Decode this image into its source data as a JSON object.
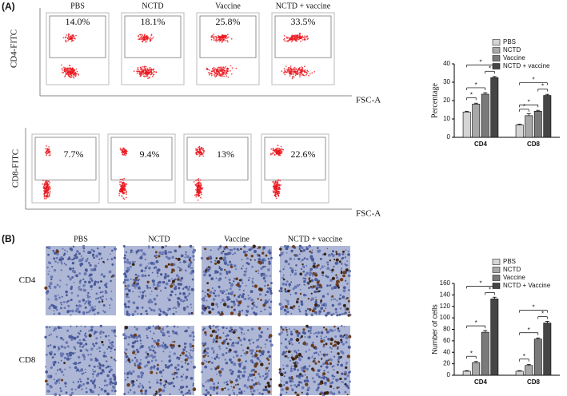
{
  "panel_a": {
    "label": "(A)",
    "groups": [
      "PBS",
      "NCTD",
      "Vaccine",
      "NCTD + vaccine"
    ],
    "rows": [
      {
        "marker": "CD4-FITC",
        "x_label": "FSC-A",
        "percentages": [
          "14.0%",
          "18.1%",
          "25.8%",
          "33.5%"
        ]
      },
      {
        "marker": "CD8-FITC",
        "x_label": "FSC-A",
        "percentages": [
          "7.7%",
          "9.4%",
          "13%",
          "22.6%"
        ]
      }
    ]
  },
  "panel_b": {
    "label": "(B)",
    "groups": [
      "PBS",
      "NCTD",
      "Vaccine",
      "NCTD + vaccine"
    ],
    "rows": [
      "CD4",
      "CD8"
    ]
  },
  "chart_data": [
    {
      "type": "bar",
      "y_label": "Percentage",
      "categories": [
        "CD4",
        "CD8"
      ],
      "series": [
        {
          "name": "PBS",
          "color": "#d4d4d4",
          "values": [
            13.8,
            6.8
          ],
          "errors": [
            0.4,
            0.4
          ]
        },
        {
          "name": "NCTD",
          "color": "#a8a8a8",
          "values": [
            18.1,
            11.8
          ],
          "errors": [
            0.5,
            1.0
          ]
        },
        {
          "name": "Vaccine",
          "color": "#7a7a7a",
          "values": [
            23.5,
            14.2
          ],
          "errors": [
            0.8,
            0.5
          ]
        },
        {
          "name": "NCTD + vaccine",
          "color": "#454545",
          "values": [
            32.5,
            22.8
          ],
          "errors": [
            0.6,
            0.6
          ]
        }
      ],
      "ylim": [
        0,
        40
      ],
      "yticks": [
        0,
        10,
        20,
        30,
        40
      ],
      "legend": "upper right",
      "annotations": [
        "*",
        "*",
        "*",
        "*",
        "*",
        "*",
        "*",
        "*"
      ]
    },
    {
      "type": "bar",
      "y_label": "Number of cells",
      "categories": [
        "CD4",
        "CD8"
      ],
      "series": [
        {
          "name": "PBS",
          "color": "#d4d4d4",
          "values": [
            7,
            7
          ],
          "errors": [
            1,
            1
          ]
        },
        {
          "name": "NCTD",
          "color": "#a8a8a8",
          "values": [
            22,
            17
          ],
          "errors": [
            2,
            2
          ]
        },
        {
          "name": "Vaccine",
          "color": "#7a7a7a",
          "values": [
            75,
            63
          ],
          "errors": [
            3,
            2
          ]
        },
        {
          "name": "NCTD + Vaccine",
          "color": "#454545",
          "values": [
            133,
            91
          ],
          "errors": [
            3,
            3
          ]
        }
      ],
      "ylim": [
        0,
        160
      ],
      "yticks": [
        0,
        20,
        40,
        60,
        80,
        100,
        120,
        140,
        160
      ],
      "legend": "upper right",
      "annotations": [
        "*",
        "*",
        "*",
        "*",
        "*",
        "*",
        "*",
        "*"
      ]
    }
  ]
}
